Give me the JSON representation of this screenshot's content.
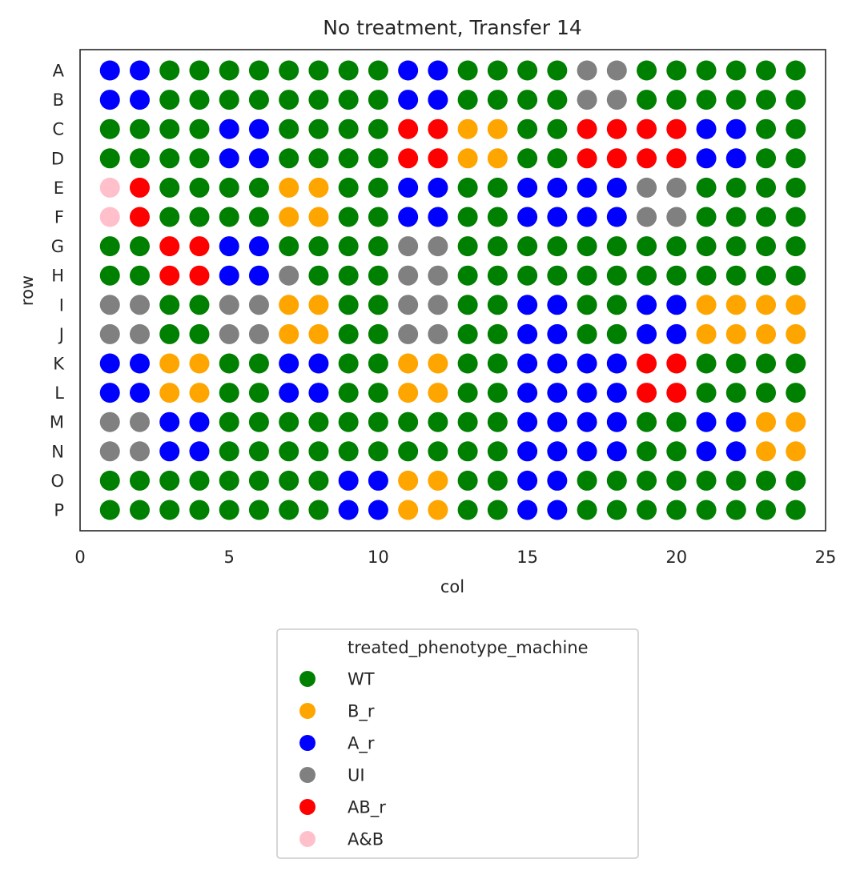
{
  "chart_data": {
    "type": "scatter",
    "title": "No treatment, Transfer 14",
    "xlabel": "col",
    "ylabel": "row",
    "xlim": [
      0,
      25
    ],
    "xticks": [
      0,
      5,
      10,
      15,
      20,
      25
    ],
    "row_labels": [
      "A",
      "B",
      "C",
      "D",
      "E",
      "F",
      "G",
      "H",
      "I",
      "J",
      "K",
      "L",
      "M",
      "N",
      "O",
      "P"
    ],
    "columns": [
      1,
      2,
      3,
      4,
      5,
      6,
      7,
      8,
      9,
      10,
      11,
      12,
      13,
      14,
      15,
      16,
      17,
      18,
      19,
      20,
      21,
      22,
      23,
      24
    ],
    "grid": false,
    "legend": {
      "title": "treated_phenotype_machine",
      "placement": "below",
      "entries": [
        {
          "name": "WT",
          "code": "W",
          "color": "#008000"
        },
        {
          "name": "B_r",
          "code": "O",
          "color": "#FFA500"
        },
        {
          "name": "A_r",
          "code": "B",
          "color": "#0000FF"
        },
        {
          "name": "UI",
          "code": "G",
          "color": "#808080"
        },
        {
          "name": "AB_r",
          "code": "R",
          "color": "#FF0000"
        },
        {
          "name": "A&B",
          "code": "P",
          "color": "#FFC0CB"
        }
      ]
    },
    "wells": [
      "BBWWWWWWWWBBWWWWGGWWWWWW",
      "BBWWWWWWWWBBWWWWGGWWWWWW",
      "WWWWBBWWWWRROOWWRRRRBBWW",
      "WWWWBBWWWWRROOWWRRRRBBWW",
      "PRWWWWOOWWBBWWBBBBGGWWWW",
      "PRWWWWOOWWBBWWBBBBGGWWWW",
      "WWRRBBWWWWGGWWWWWWWWWWWW",
      "WWRRBBGWWWGGWWWWWWWWWWWW",
      "GGWWGGOOWWGGWWBBWWBBOOOO",
      "GGWWGGOOWWGGWWBBWWBBOOOO",
      "BBOOWWBBWWOOWWBBBBRRWWWW",
      "BBOOWWBBWWOOWWBBBBRRWWWW",
      "GGBBWWWWWWWWWWBBBBWWBBOO",
      "GGBBWWWWWWWWWWBBBBWWBBOO",
      "WWWWWWWWBBOOWWBBWWWWWWWW",
      "WWWWWWWWBBOOWWBBWWWWWWWW"
    ]
  }
}
